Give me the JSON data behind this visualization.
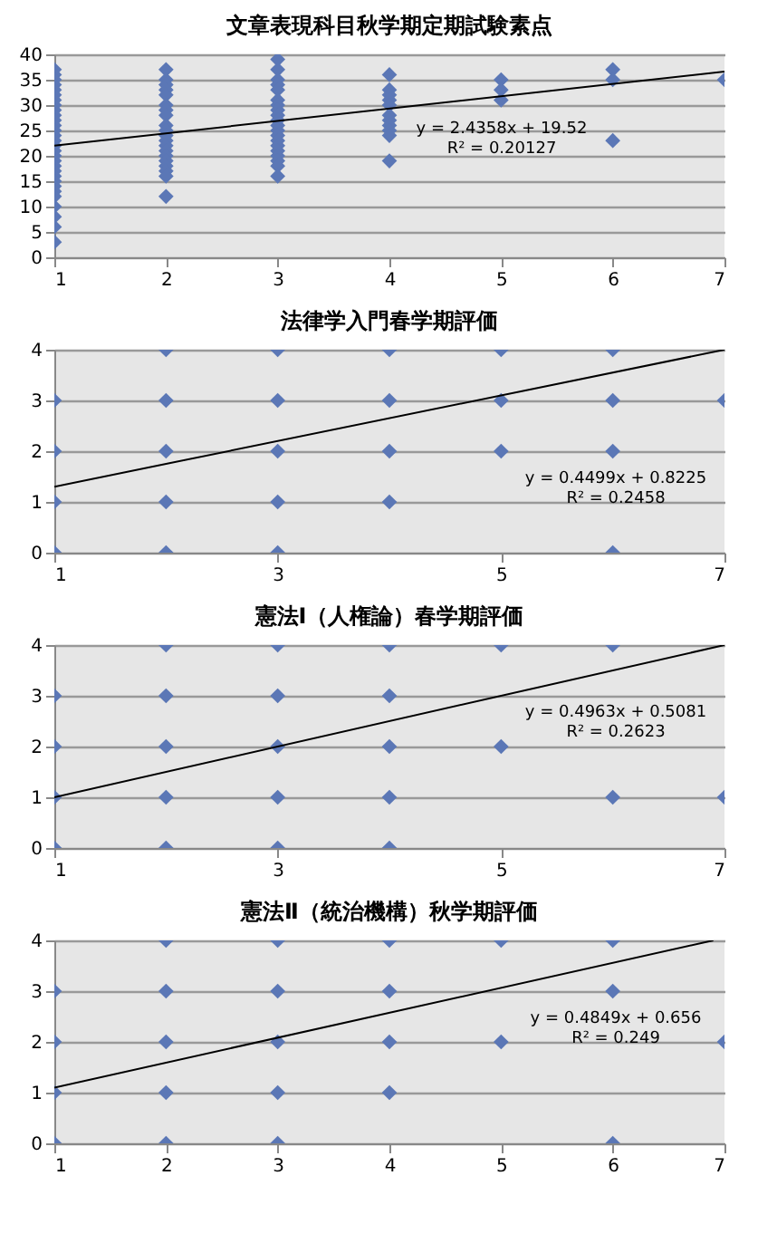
{
  "chart_data": [
    {
      "type": "scatter",
      "title": "文章表現科目秋学期定期試験素点",
      "xlim": [
        1,
        7
      ],
      "xticks": [
        1,
        2,
        3,
        4,
        5,
        6,
        7
      ],
      "ylim": [
        0,
        40
      ],
      "yticks": [
        0,
        5,
        10,
        15,
        20,
        25,
        30,
        35,
        40
      ],
      "grid": "y",
      "annotations": [
        "y = 2.4358x + 19.52",
        "R² = 0.20127"
      ],
      "series": [
        {
          "type": "scatter",
          "marker": "diamond",
          "color": "#5b77b6",
          "x": [
            1,
            1,
            1,
            1,
            1,
            1,
            1,
            1,
            1,
            1,
            1,
            1,
            1,
            1,
            1,
            1,
            1,
            1,
            1,
            1,
            1,
            1,
            1,
            1,
            1,
            1,
            1,
            1,
            1,
            1,
            2,
            2,
            2,
            2,
            2,
            2,
            2,
            2,
            2,
            2,
            2,
            2,
            2,
            2,
            2,
            2,
            2,
            2,
            2,
            2,
            3,
            3,
            3,
            3,
            3,
            3,
            3,
            3,
            3,
            3,
            3,
            3,
            3,
            3,
            3,
            3,
            3,
            3,
            3,
            3,
            4,
            4,
            4,
            4,
            4,
            4,
            4,
            4,
            4,
            4,
            4,
            5,
            5,
            5,
            6,
            6,
            6,
            7
          ],
          "values": [
            37,
            36,
            35,
            34,
            33,
            32,
            31,
            30,
            29,
            28,
            27,
            26,
            25,
            24,
            23,
            22,
            21,
            20,
            19,
            18,
            17,
            16,
            15,
            14,
            13,
            12,
            10,
            8,
            6,
            3,
            37,
            35,
            34,
            33,
            32,
            30,
            29,
            28,
            26,
            25,
            24,
            23,
            22,
            21,
            20,
            19,
            18,
            17,
            16,
            12,
            39,
            37,
            35,
            34,
            33,
            31,
            30,
            29,
            28,
            27,
            26,
            25,
            24,
            23,
            22,
            21,
            20,
            19,
            18,
            16,
            36,
            33,
            32,
            31,
            30,
            28,
            27,
            26,
            25,
            24,
            19,
            35,
            33,
            31,
            37,
            35,
            23,
            35
          ]
        },
        {
          "type": "line",
          "color": "#000000",
          "x": [
            1,
            7
          ],
          "values": [
            22.0,
            36.6
          ]
        }
      ]
    },
    {
      "type": "scatter",
      "title": "法律学入門春学期評価",
      "xlim": [
        1,
        7
      ],
      "xticks": [
        1,
        3,
        5,
        7
      ],
      "ylim": [
        0,
        4
      ],
      "yticks": [
        0,
        1,
        2,
        3,
        4
      ],
      "grid": "y",
      "annotations": [
        "y = 0.4499x + 0.8225",
        "R² = 0.2458"
      ],
      "series": [
        {
          "type": "scatter",
          "marker": "diamond",
          "color": "#5b77b6",
          "x": [
            1,
            1,
            1,
            1,
            2,
            2,
            2,
            2,
            2,
            3,
            3,
            3,
            3,
            3,
            4,
            4,
            4,
            4,
            5,
            5,
            5,
            6,
            6,
            6,
            6,
            7
          ],
          "values": [
            0,
            1,
            2,
            3,
            0,
            1,
            2,
            3,
            4,
            0,
            1,
            2,
            3,
            4,
            1,
            2,
            3,
            4,
            2,
            3,
            4,
            0,
            2,
            3,
            4,
            3
          ]
        },
        {
          "type": "line",
          "color": "#000000",
          "x": [
            1,
            7
          ],
          "values": [
            1.3,
            4.0
          ]
        }
      ]
    },
    {
      "type": "scatter",
      "title": "憲法Ⅰ（人権論）春学期評価",
      "xlim": [
        1,
        7
      ],
      "xticks": [
        1,
        3,
        5,
        7
      ],
      "ylim": [
        0,
        4
      ],
      "yticks": [
        0,
        1,
        2,
        3,
        4
      ],
      "grid": "y",
      "annotations": [
        "y = 0.4963x + 0.5081",
        "R² = 0.2623"
      ],
      "series": [
        {
          "type": "scatter",
          "marker": "diamond",
          "color": "#5b77b6",
          "x": [
            1,
            1,
            1,
            1,
            2,
            2,
            2,
            2,
            2,
            3,
            3,
            3,
            3,
            3,
            4,
            4,
            4,
            4,
            4,
            5,
            5,
            6,
            6,
            7
          ],
          "values": [
            0,
            1,
            2,
            3,
            0,
            1,
            2,
            3,
            4,
            0,
            1,
            2,
            3,
            4,
            0,
            1,
            2,
            3,
            4,
            2,
            4,
            1,
            4,
            1
          ]
        },
        {
          "type": "line",
          "color": "#000000",
          "x": [
            1,
            7
          ],
          "values": [
            1.0,
            4.0
          ]
        }
      ]
    },
    {
      "type": "scatter",
      "title": "憲法Ⅱ（統治機構）秋学期評価",
      "xlim": [
        1,
        7
      ],
      "xticks": [
        1,
        2,
        3,
        4,
        5,
        6,
        7
      ],
      "ylim": [
        0,
        4
      ],
      "yticks": [
        0,
        1,
        2,
        3,
        4
      ],
      "grid": "y",
      "annotations": [
        "y = 0.4849x + 0.656",
        "R² = 0.249"
      ],
      "series": [
        {
          "type": "scatter",
          "marker": "diamond",
          "color": "#5b77b6",
          "x": [
            1,
            1,
            1,
            1,
            2,
            2,
            2,
            2,
            2,
            3,
            3,
            3,
            3,
            3,
            4,
            4,
            4,
            4,
            5,
            5,
            6,
            6,
            6,
            7
          ],
          "values": [
            0,
            1,
            2,
            3,
            0,
            1,
            2,
            3,
            4,
            0,
            1,
            2,
            3,
            4,
            1,
            2,
            3,
            4,
            2,
            4,
            0,
            3,
            4,
            2
          ]
        },
        {
          "type": "line",
          "color": "#000000",
          "x": [
            1,
            6.9
          ],
          "values": [
            1.1,
            4.0
          ]
        }
      ]
    }
  ]
}
